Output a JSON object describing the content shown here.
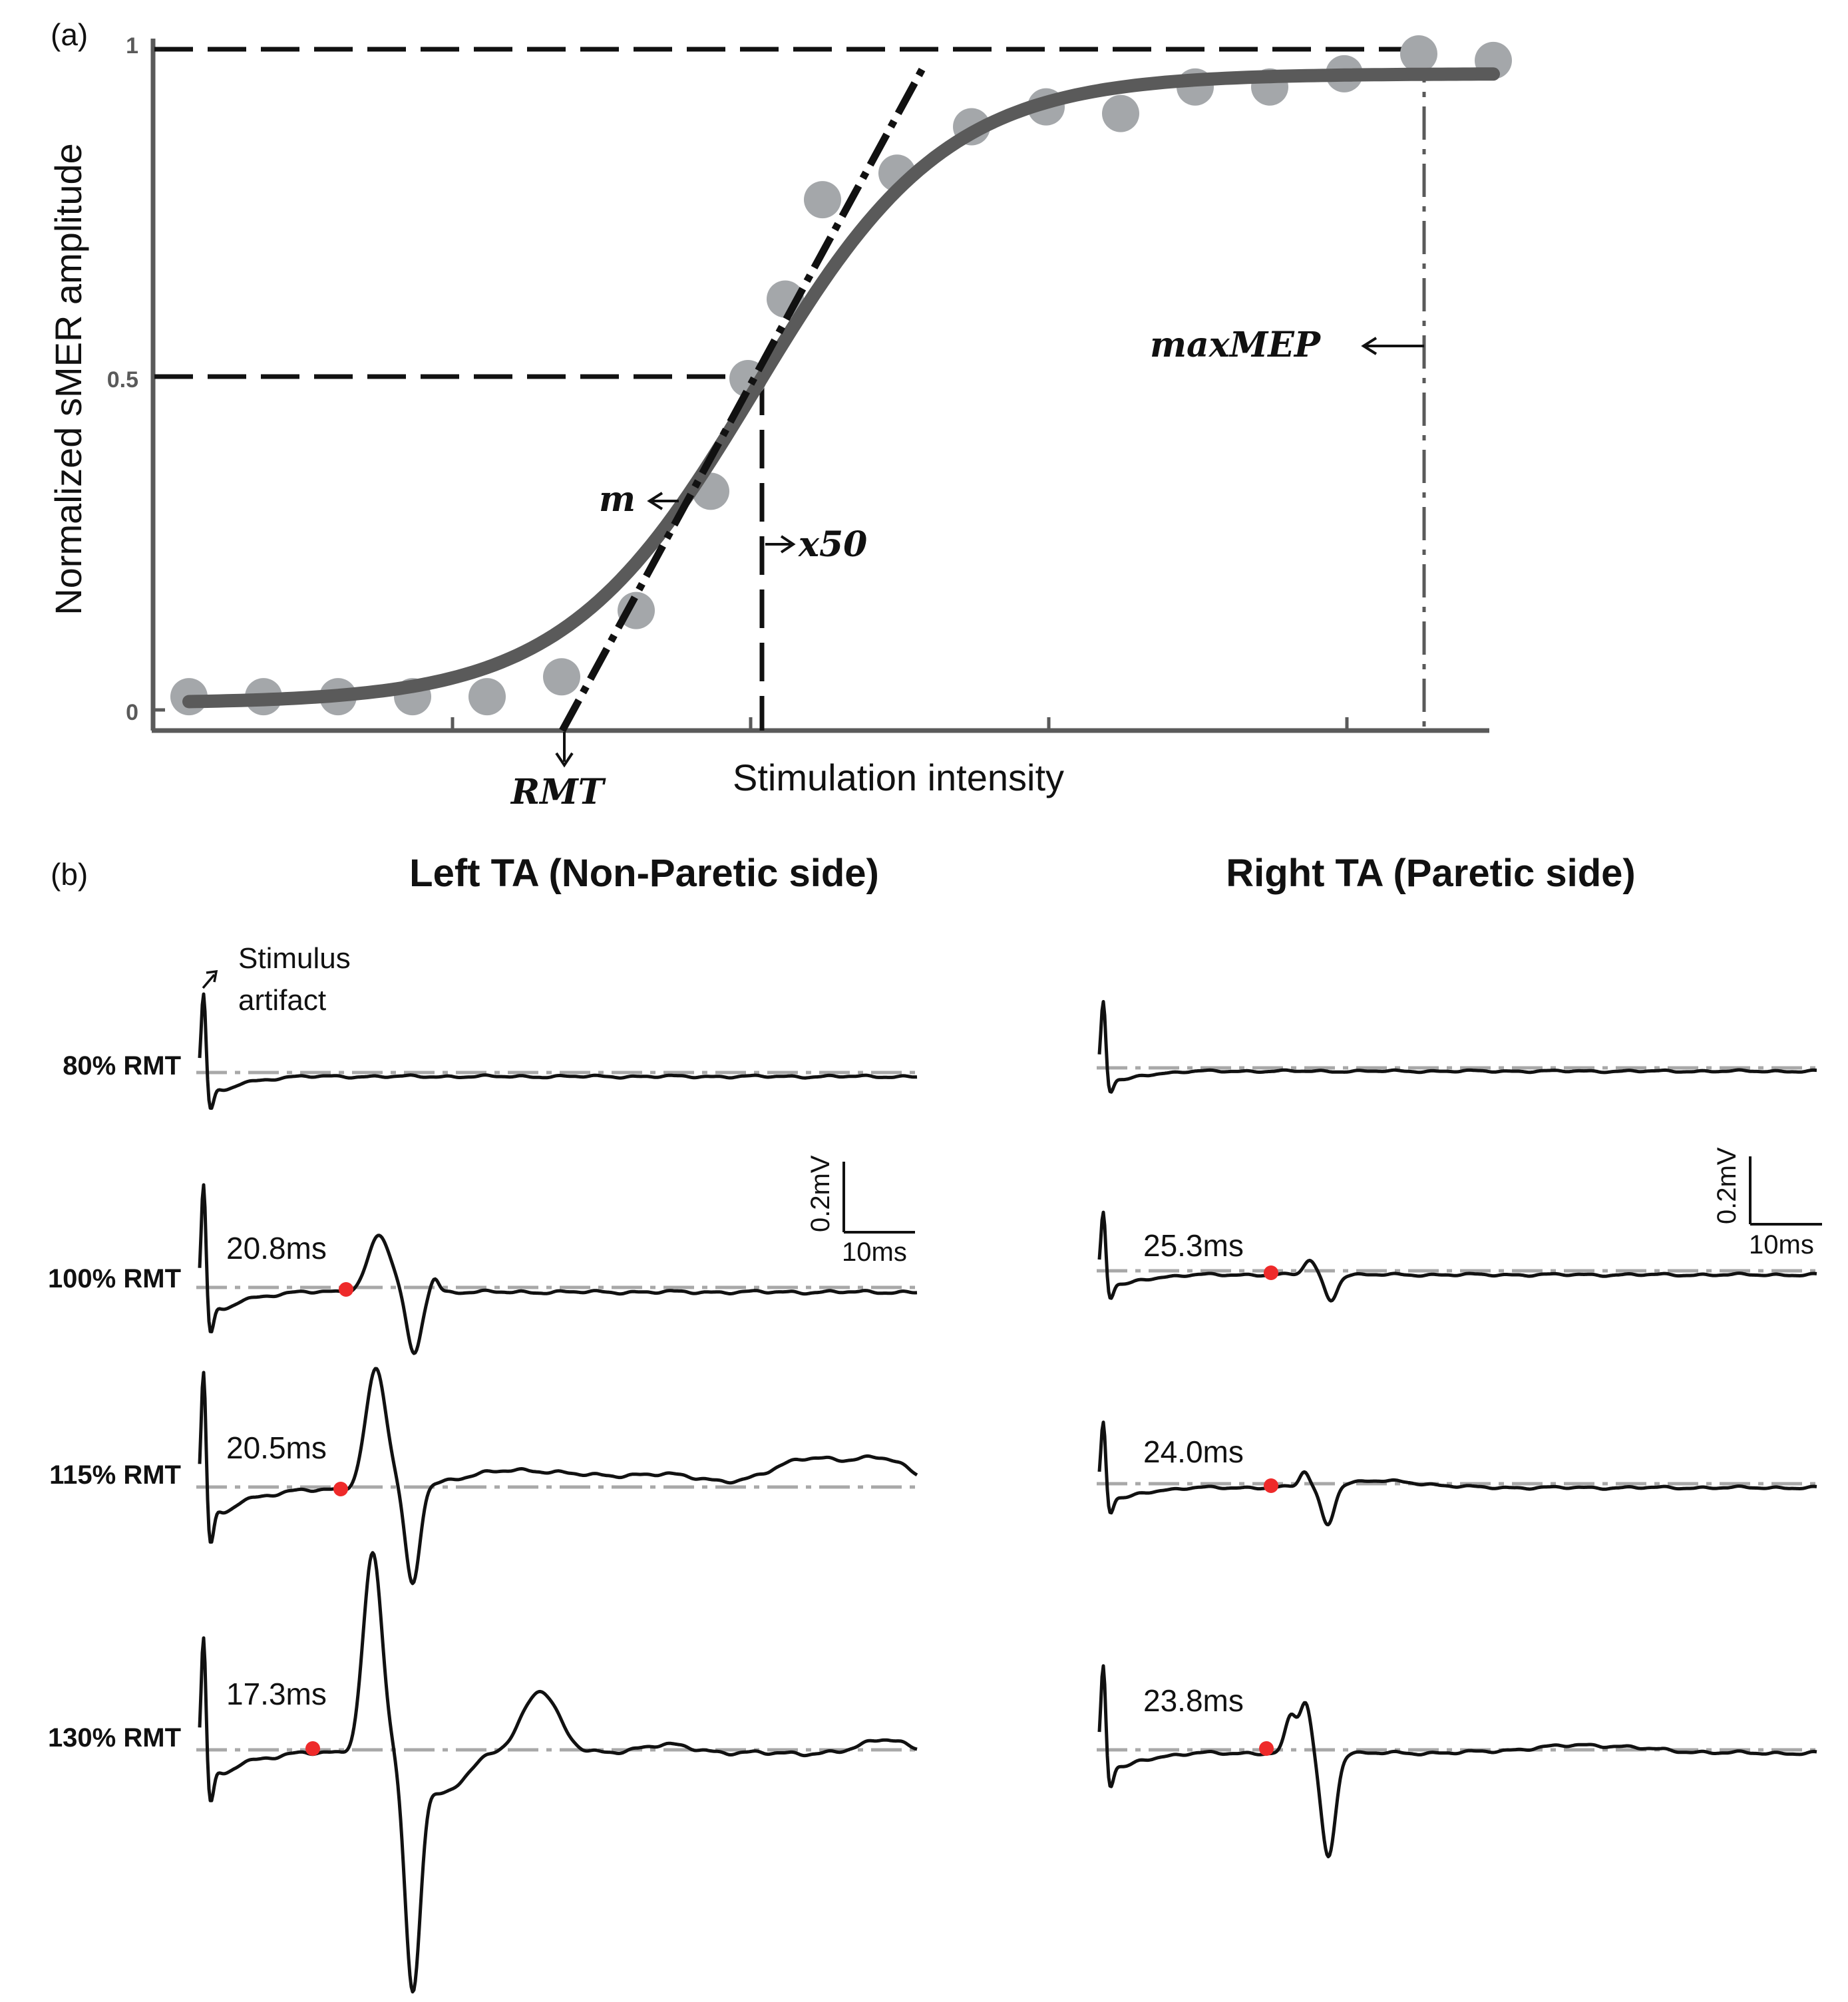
{
  "panel_a": {
    "panel_label": "(a)",
    "ylabel": "Normalized sMER amplitude",
    "xlabel": "Stimulation intensity",
    "y_ticks": [
      "0",
      "0.5",
      "1"
    ],
    "annotations": {
      "rmt": "RMT",
      "m": "m",
      "x50": "x50",
      "maxmep": "maxMEP"
    }
  },
  "panel_b": {
    "panel_label": "(b)",
    "left_title": "Left TA (Non-Paretic side)",
    "right_title": "Right TA (Paretic side)",
    "stimulus_label_1": "Stimulus",
    "stimulus_label_2": "artifact",
    "row_labels": [
      "80% RMT",
      "100% RMT",
      "115% RMT",
      "130% RMT"
    ],
    "left_latencies": [
      "20.8ms",
      "20.5ms",
      "17.3ms"
    ],
    "right_latencies": [
      "25.3ms",
      "24.0ms",
      "23.8ms"
    ],
    "scale_amplitude": "0.2mV",
    "scale_time": "10ms"
  },
  "colors": {
    "curve": "#5a5a5a",
    "points": "#a4a7aa",
    "trace": "#111111",
    "baseline": "#a8a8a8",
    "onset_dot": "#ee2a2a"
  },
  "chart_data": [
    {
      "type": "scatter",
      "title": "",
      "xlabel": "Stimulation intensity",
      "ylabel": "Normalized sMER amplitude",
      "ylim": [
        0,
        1
      ],
      "xlim": [
        0,
        18
      ],
      "x": [
        0.5,
        1.5,
        2.5,
        3.5,
        4.5,
        5.5,
        6.5,
        7.5,
        8.0,
        8.5,
        9.0,
        10.0,
        11.0,
        12.0,
        13.0,
        14.0,
        15.0,
        16.0,
        17.0,
        18.0
      ],
      "y": [
        0.02,
        0.02,
        0.02,
        0.02,
        0.02,
        0.05,
        0.15,
        0.33,
        0.5,
        0.62,
        0.77,
        0.81,
        0.88,
        0.91,
        0.9,
        0.94,
        0.94,
        0.96,
        0.99,
        0.98
      ],
      "fit": {
        "model": "sigmoid",
        "max": 0.96,
        "x50": 8.1,
        "slope": 0.78,
        "min": 0.01
      },
      "tangent_at_x50": true,
      "annotations": [
        "RMT",
        "m",
        "x50",
        "maxMEP"
      ]
    },
    {
      "type": "line",
      "title": "Left TA (Non-Paretic side)",
      "x_unit": "ms",
      "y_unit": "mV",
      "series": [
        {
          "name": "80% RMT",
          "latency_ms": null
        },
        {
          "name": "100% RMT",
          "latency_ms": 20.8
        },
        {
          "name": "115% RMT",
          "latency_ms": 20.5
        },
        {
          "name": "130% RMT",
          "latency_ms": 17.3
        }
      ],
      "scale_bar": {
        "amplitude": "0.2mV",
        "time": "10ms"
      }
    },
    {
      "type": "line",
      "title": "Right TA (Paretic side)",
      "x_unit": "ms",
      "y_unit": "mV",
      "series": [
        {
          "name": "80% RMT",
          "latency_ms": null
        },
        {
          "name": "100% RMT",
          "latency_ms": 25.3
        },
        {
          "name": "115% RMT",
          "latency_ms": 24.0
        },
        {
          "name": "130% RMT",
          "latency_ms": 23.8
        }
      ],
      "scale_bar": {
        "amplitude": "0.2mV",
        "time": "10ms"
      }
    }
  ]
}
